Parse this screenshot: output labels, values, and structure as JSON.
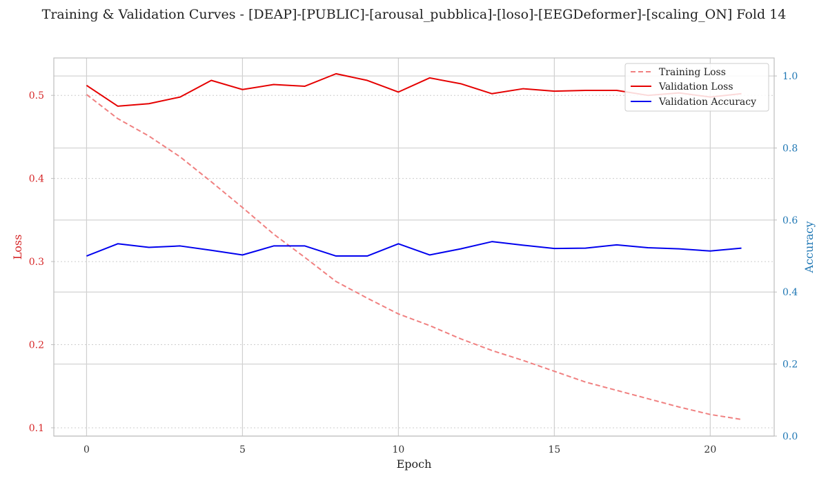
{
  "chart_data": {
    "type": "line",
    "title": "Training & Validation Curves - [DEAP]-[PUBLIC]-[arousal_pubblica]-[loso]-[EEGDeformer]-[scaling_ON] Fold 14",
    "xlabel": "Epoch",
    "ylabel_left": "Loss",
    "ylabel_right": "Accuracy",
    "xlim": [
      -1.05,
      22.05
    ],
    "ylim_left": [
      0.09,
      0.545
    ],
    "ylim_right": [
      0.0,
      1.05
    ],
    "x_ticks": [
      0,
      5,
      10,
      15,
      20
    ],
    "y_left_ticks": [
      0.1,
      0.2,
      0.3,
      0.4,
      0.5
    ],
    "y_right_ticks": [
      0.0,
      0.2,
      0.4,
      0.6,
      0.8,
      1.0
    ],
    "grid": true,
    "legend_position": "top-right",
    "x": [
      0,
      1,
      2,
      3,
      4,
      5,
      6,
      7,
      8,
      9,
      10,
      11,
      12,
      13,
      14,
      15,
      16,
      17,
      18,
      19,
      20,
      21
    ],
    "series": [
      {
        "name": "Training Loss",
        "axis": "left",
        "style": "dashed",
        "color": "#f08080",
        "values": [
          0.501,
          0.472,
          0.451,
          0.426,
          0.396,
          0.365,
          0.333,
          0.305,
          0.276,
          0.256,
          0.237,
          0.223,
          0.207,
          0.193,
          0.181,
          0.168,
          0.155,
          0.145,
          0.135,
          0.125,
          0.116,
          0.11
        ]
      },
      {
        "name": "Validation Loss",
        "axis": "left",
        "style": "solid",
        "color": "#e50000",
        "values": [
          0.512,
          0.487,
          0.49,
          0.498,
          0.518,
          0.507,
          0.513,
          0.511,
          0.526,
          0.518,
          0.504,
          0.521,
          0.514,
          0.502,
          0.508,
          0.505,
          0.506,
          0.506,
          0.5,
          0.503,
          0.498,
          0.502
        ]
      },
      {
        "name": "Validation Accuracy",
        "axis": "right",
        "style": "solid",
        "color": "#0000ee",
        "values": [
          0.5,
          0.534,
          0.524,
          0.528,
          0.516,
          0.503,
          0.528,
          0.528,
          0.5,
          0.5,
          0.534,
          0.503,
          0.52,
          0.54,
          0.53,
          0.521,
          0.522,
          0.531,
          0.523,
          0.52,
          0.514,
          0.522
        ]
      }
    ]
  }
}
